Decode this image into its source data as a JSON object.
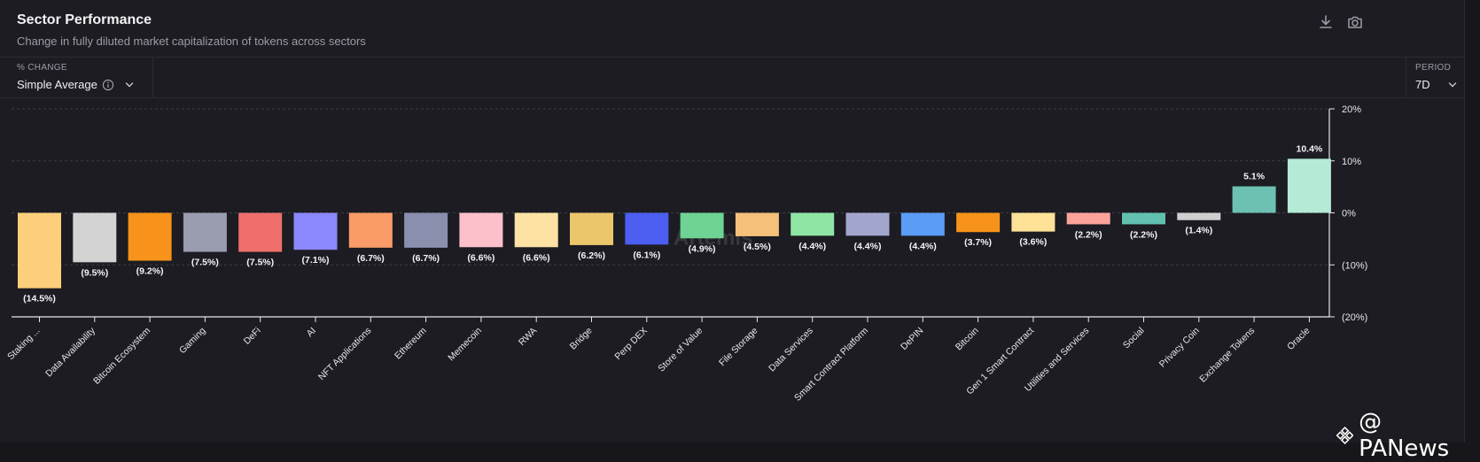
{
  "header": {
    "title": "Sector Performance",
    "subtitle": "Change in fully diluted market capitalization of tokens across sectors",
    "download_icon": "download-icon",
    "screenshot_icon": "camera-icon"
  },
  "controls": {
    "metric_label": "% CHANGE",
    "metric_value": "Simple Average",
    "period_label": "PERIOD",
    "period_value": "7D"
  },
  "watermark": {
    "center": "Artemis",
    "corner": "@ PANews"
  },
  "chart_data": {
    "type": "bar",
    "categories": [
      "Staking ...",
      "Data Availability",
      "Bitcoin Ecosystem",
      "Gaming",
      "DeFi",
      "AI",
      "NFT Applications",
      "Ethereum",
      "Memecoin",
      "RWA",
      "Bridge",
      "Perp DEX",
      "Store of Value",
      "File Storage",
      "Data Services",
      "Smart Contract Platform",
      "DePIN",
      "Bitcoin",
      "Gen 1 Smart Contract",
      "Utilities and Services",
      "Social",
      "Privacy Coin",
      "Exchange Tokens",
      "Oracle"
    ],
    "values": [
      -14.5,
      -9.5,
      -9.2,
      -7.5,
      -7.5,
      -7.1,
      -6.7,
      -6.7,
      -6.6,
      -6.6,
      -6.2,
      -6.1,
      -4.9,
      -4.5,
      -4.4,
      -4.4,
      -4.4,
      -3.7,
      -3.6,
      -2.2,
      -2.2,
      -1.4,
      5.1,
      10.4
    ],
    "labels": [
      "(14.5%)",
      "(9.5%)",
      "(9.2%)",
      "(7.5%)",
      "(7.5%)",
      "(7.1%)",
      "(6.7%)",
      "(6.7%)",
      "(6.6%)",
      "(6.6%)",
      "(6.2%)",
      "(6.1%)",
      "(4.9%)",
      "(4.5%)",
      "(4.4%)",
      "(4.4%)",
      "(4.4%)",
      "(3.7%)",
      "(3.6%)",
      "(2.2%)",
      "(2.2%)",
      "(1.4%)",
      "5.1%",
      "10.4%"
    ],
    "colors": [
      "#fdcf7a",
      "#d3d3d3",
      "#f7931a",
      "#9a9cb0",
      "#ef6f6c",
      "#8b87fc",
      "#fa9c68",
      "#8a8fae",
      "#fcc0cb",
      "#fde2a3",
      "#ecc66b",
      "#4c5ef0",
      "#6fd393",
      "#f4c07a",
      "#8ee6a4",
      "#a3a6cc",
      "#5b9cf7",
      "#f7931a",
      "#fce196",
      "#fba39a",
      "#62c0b0",
      "#cfcfcf",
      "#6cc1b3",
      "#b5ead6"
    ],
    "ylim": [
      -20,
      20
    ],
    "yticks": [
      20,
      10,
      0,
      -10,
      -20
    ],
    "ytick_labels": [
      "20%",
      "10%",
      "0%",
      "(10%)",
      "(20%)"
    ],
    "ylabel_position": "right",
    "grid": true
  }
}
